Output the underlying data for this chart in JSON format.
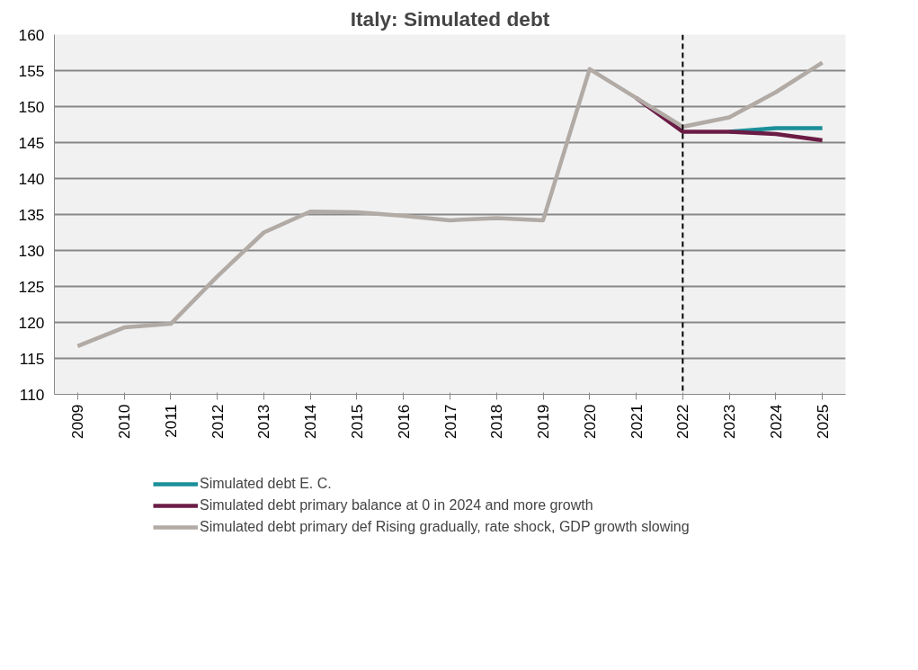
{
  "chart_data": {
    "type": "line",
    "title": "Italy: Simulated debt",
    "categories": [
      "2009",
      "2010",
      "2011",
      "2012",
      "2013",
      "2014",
      "2015",
      "2016",
      "2017",
      "2018",
      "2019",
      "2020",
      "2021",
      "2022",
      "2023",
      "2024",
      "2025"
    ],
    "series": [
      {
        "name": "Simulated debt E. C.",
        "color": "#1b8f9a",
        "values": [
          null,
          null,
          null,
          null,
          null,
          null,
          null,
          null,
          null,
          null,
          null,
          null,
          null,
          null,
          146.5,
          147.0,
          147.0
        ]
      },
      {
        "name": "Simulated debt primary balance at 0 in 2024 and more growth",
        "color": "#6b1c45",
        "values": [
          null,
          null,
          null,
          null,
          null,
          null,
          null,
          null,
          null,
          null,
          null,
          null,
          151.2,
          146.5,
          146.5,
          146.2,
          145.3
        ]
      },
      {
        "name": "Simulated debt primary def Rising gradually, rate shock, GDP growth slowing",
        "color": "#b1aaa5",
        "values": [
          116.7,
          119.3,
          119.8,
          126.4,
          132.5,
          135.4,
          135.3,
          134.8,
          134.2,
          134.5,
          134.2,
          155.2,
          151.2,
          147.2,
          148.5,
          152.0,
          156.1
        ]
      }
    ],
    "ylim": [
      110,
      160
    ],
    "yticks": [
      110,
      115,
      120,
      125,
      130,
      135,
      140,
      145,
      150,
      155,
      160
    ],
    "grid": "y",
    "legend": "bottom",
    "line_style": "solid",
    "marker": "none",
    "ref_lines": [
      {
        "axis": "x",
        "value": "2022",
        "color": "#000000",
        "line_style": "dashed"
      }
    ]
  }
}
